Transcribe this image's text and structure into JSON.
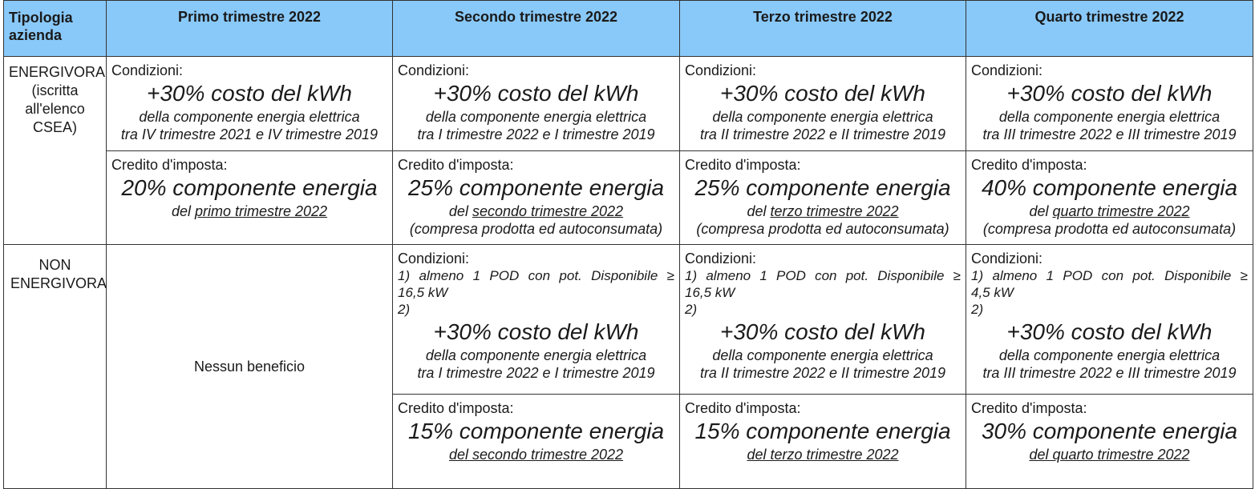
{
  "header": {
    "type_label": "Tipologia azienda",
    "quarters": [
      "Primo trimestre 2022",
      "Secondo trimestre 2022",
      "Terzo trimestre 2022",
      "Quarto trimestre 2022"
    ]
  },
  "energivora": {
    "label": "ENERGIVORA (iscritta all'elenco CSEA)",
    "conditions": [
      {
        "label": "Condizioni:",
        "main": "+30% costo del kWh",
        "line1": "della componente energia elettrica",
        "line2": "tra IV trimestre 2021 e IV trimestre 2019"
      },
      {
        "label": "Condizioni:",
        "main": "+30% costo del kWh",
        "line1": "della componente energia elettrica",
        "line2": "tra I trimestre 2022 e I trimestre 2019"
      },
      {
        "label": "Condizioni:",
        "main": "+30% costo del kWh",
        "line1": "della componente energia elettrica",
        "line2": "tra II trimestre 2022 e II trimestre 2019"
      },
      {
        "label": "Condizioni:",
        "main": "+30% costo del kWh",
        "line1": "della componente energia elettrica",
        "line2": "tra III trimestre 2022 e III trimestre 2019"
      }
    ],
    "credits": [
      {
        "label": "Credito d'imposta:",
        "main": "20% componente energia",
        "pre": "del ",
        "period": "primo trimestre 2022",
        "note": ""
      },
      {
        "label": "Credito d'imposta:",
        "main": "25% componente energia",
        "pre": "del ",
        "period": "secondo trimestre 2022",
        "note": "(compresa prodotta ed autoconsumata)"
      },
      {
        "label": "Credito d'imposta:",
        "main": "25% componente energia",
        "pre": "del ",
        "period": "terzo trimestre 2022",
        "note": "(compresa prodotta ed autoconsumata)"
      },
      {
        "label": "Credito d'imposta:",
        "main": "40% componente energia",
        "pre": "del ",
        "period": "quarto trimestre 2022",
        "note": "(compresa prodotta ed autoconsumata)"
      }
    ]
  },
  "non_energivora": {
    "label": "NON ENERGIVORA",
    "no_benefit": "Nessun beneficio",
    "conditions": [
      {
        "label": "Condizioni:",
        "c1": "1) almeno 1 POD con pot. Disponibile ≥",
        "c1b": "16,5 kW",
        "c2": "2)",
        "main": "+30% costo del kWh",
        "line1": "della componente energia elettrica",
        "line2": "tra I trimestre 2022 e I trimestre 2019"
      },
      {
        "label": "Condizioni:",
        "c1": "1) almeno 1 POD con pot. Disponibile ≥",
        "c1b": "16,5 kW",
        "c2": "2)",
        "main": "+30% costo del kWh",
        "line1": "della componente energia elettrica",
        "line2": "tra II trimestre 2022 e II trimestre 2019"
      },
      {
        "label": "Condizioni:",
        "c1": "1) almeno 1 POD con pot. Disponibile ≥",
        "c1b": "4,5 kW",
        "c2": "2)",
        "main": "+30% costo del kWh",
        "line1": "della componente energia elettrica",
        "line2": "tra III trimestre 2022 e III trimestre 2019"
      }
    ],
    "credits": [
      {
        "label": "Credito d'imposta:",
        "main": "15% componente energia",
        "text": "del secondo trimestre 2022"
      },
      {
        "label": "Credito d'imposta:",
        "main": "15% componente energia",
        "text": "del terzo trimestre 2022"
      },
      {
        "label": "Credito d'imposta:",
        "main": "30% componente energia",
        "text": "del quarto trimestre 2022"
      }
    ]
  }
}
